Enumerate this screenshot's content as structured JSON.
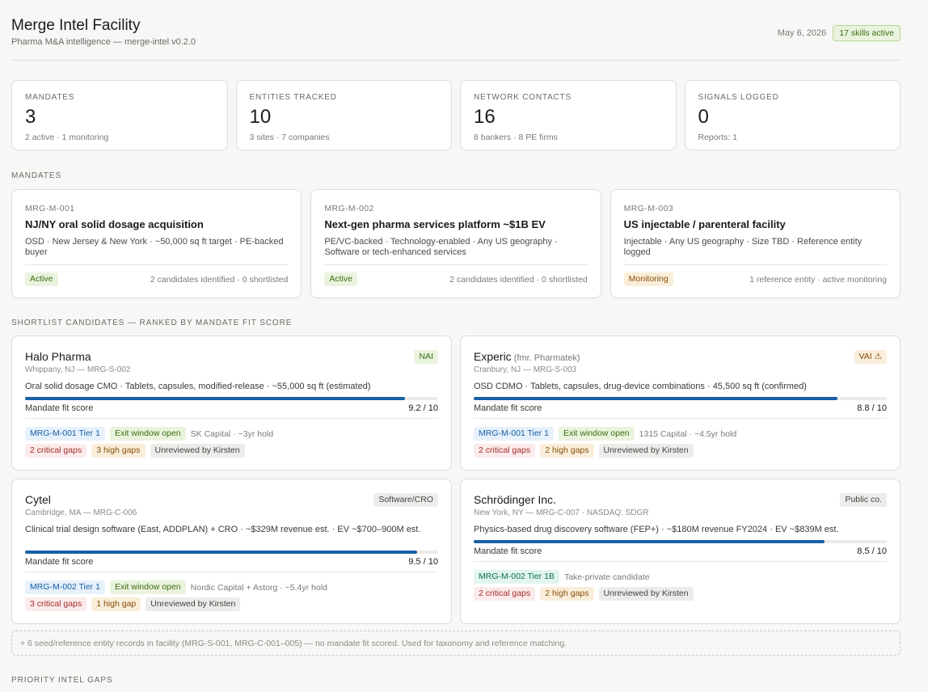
{
  "header": {
    "title": "Merge Intel Facility",
    "subtitle": "Pharma M&A intelligence — merge-intel v0.2.0",
    "date": "May 6, 2026",
    "skills_badge": "17 skills active"
  },
  "stats": [
    {
      "label": "MANDATES",
      "value": "3",
      "sub": "2 active · 1 monitoring"
    },
    {
      "label": "ENTITIES TRACKED",
      "value": "10",
      "sub": "3 sites · 7 companies"
    },
    {
      "label": "NETWORK CONTACTS",
      "value": "16",
      "sub": "8 bankers · 8 PE firms"
    },
    {
      "label": "SIGNALS LOGGED",
      "value": "0",
      "sub": "Reports: 1"
    }
  ],
  "sections": {
    "mandates": "MANDATES",
    "shortlist": "SHORTLIST CANDIDATES — RANKED BY MANDATE FIT SCORE",
    "priority": "PRIORITY INTEL GAPS"
  },
  "mandates": [
    {
      "code": "MRG-M-001",
      "title": "NJ/NY oral solid dosage acquisition",
      "desc": "OSD · New Jersey & New York · ~50,000 sq ft target · PE-backed buyer",
      "status": "Active",
      "count": "2 candidates identified · 0 shortlisted"
    },
    {
      "code": "MRG-M-002",
      "title": "Next-gen pharma services platform ~$1B EV",
      "desc": "PE/VC-backed · Technology-enabled · Any US geography · Software or tech-enhanced services",
      "status": "Active",
      "count": "2 candidates identified · 0 shortlisted"
    },
    {
      "code": "MRG-M-003",
      "title": "US injectable / parenteral facility",
      "desc": "Injectable · Any US geography · Size TBD · Reference entity logged",
      "status": "Monitoring",
      "count": "1 reference entity · active monitoring"
    }
  ],
  "candidates": [
    {
      "name": "Halo Pharma",
      "fmr": "",
      "badge": "NAI",
      "location": "Whippany, NJ — MRG-S-002",
      "desc": "Oral solid dosage CMO · Tablets, capsules, modified-release · ~55,000 sq ft (estimated)",
      "fit_label": "Mandate fit score",
      "fit_score": "9.2 / 10",
      "fit_fraction": 0.92,
      "tier": "MRG-M-001 Tier 1",
      "exit": "Exit window open",
      "owner": "SK Capital · ~3yr hold",
      "critical": "2 critical gaps",
      "high": "3 high gaps",
      "review": "Unreviewed by Kirsten"
    },
    {
      "name": "Experic",
      "fmr": "(fmr. Pharmatek)",
      "badge": "VAI ⚠",
      "location": "Cranbury, NJ — MRG-S-003",
      "desc": "OSD CDMO · Tablets, capsules, drug-device combinations · 45,500 sq ft (confirmed)",
      "fit_label": "Mandate fit score",
      "fit_score": "8.8 / 10",
      "fit_fraction": 0.88,
      "tier": "MRG-M-001 Tier 1",
      "exit": "Exit window open",
      "owner": "1315 Capital · ~4.5yr hold",
      "critical": "2 critical gaps",
      "high": "2 high gaps",
      "review": "Unreviewed by Kirsten"
    },
    {
      "name": "Cytel",
      "fmr": "",
      "badge": "Software/CRO",
      "location": "Cambridge, MA — MRG-C-006",
      "desc": "Clinical trial design software (East, ADDPLAN) + CRO · ~$329M revenue est. · EV ~$700–900M est.",
      "fit_label": "Mandate fit score",
      "fit_score": "9.5 / 10",
      "fit_fraction": 0.95,
      "tier": "MRG-M-002 Tier 1",
      "exit": "Exit window open",
      "owner": "Nordic Capital + Astorg · ~5.4yr hold",
      "critical": "3 critical gaps",
      "high": "1 high gap",
      "review": "Unreviewed by Kirsten"
    },
    {
      "name": "Schrödinger Inc.",
      "fmr": "",
      "badge": "Public co.",
      "location": "New York, NY — MRG-C-007 · NASDAQ: SDGR",
      "desc": "Physics-based drug discovery software (FEP+) · ~$180M revenue FY2024 · EV ~$839M est.",
      "fit_label": "Mandate fit score",
      "fit_score": "8.5 / 10",
      "fit_fraction": 0.85,
      "tier": "MRG-M-002 Tier 1B",
      "exit": "",
      "owner": "Take-private candidate",
      "critical": "2 critical gaps",
      "high": "2 high gaps",
      "review": "Unreviewed by Kirsten"
    }
  ],
  "seed_note": "+ 6 seed/reference entity records in facility (MRG-S-001, MRG-C-001–005) — no mandate fit scored. Used for taxonomy and reference matching."
}
